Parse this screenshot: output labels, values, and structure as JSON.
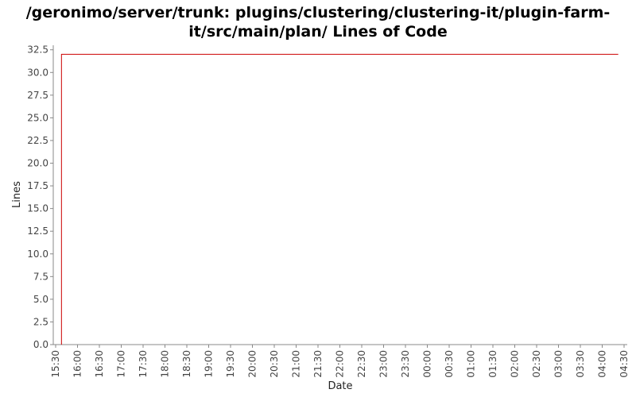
{
  "chart_data": {
    "type": "line",
    "title_line1": "/geronimo/server/trunk: plugins/clustering/clustering-it/plugin-farm-",
    "title_line2": "it/src/main/plan/ Lines of Code",
    "xlabel": "Date",
    "ylabel": "Lines",
    "ylim": [
      0,
      33.0
    ],
    "y_ticks": [
      "0.0",
      "2.5",
      "5.0",
      "7.5",
      "10.0",
      "12.5",
      "15.0",
      "17.5",
      "20.0",
      "22.5",
      "25.0",
      "27.5",
      "30.0",
      "32.5"
    ],
    "x_ticks": [
      "15:30",
      "16:00",
      "16:30",
      "17:00",
      "17:30",
      "18:00",
      "18:30",
      "19:00",
      "19:30",
      "20:00",
      "20:30",
      "21:00",
      "21:30",
      "22:00",
      "22:30",
      "23:00",
      "23:30",
      "00:00",
      "00:30",
      "01:00",
      "01:30",
      "02:00",
      "02:30",
      "03:00",
      "03:30",
      "04:00",
      "04:30"
    ],
    "series": [
      {
        "color": "#cc0000",
        "x": [
          "15:38",
          "15:38",
          "04:22"
        ],
        "y": [
          0,
          32,
          32
        ]
      }
    ],
    "grid": false
  }
}
